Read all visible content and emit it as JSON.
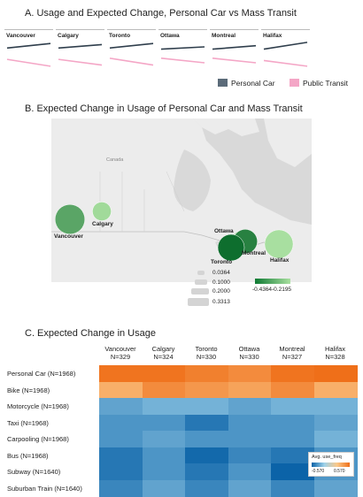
{
  "section_a": {
    "title": "A. Usage and Expected Change, Personal Car vs Mass Transit",
    "legend": [
      {
        "label": "Personal Car",
        "color": "#5b6b79"
      },
      {
        "label": "Public Transit",
        "color": "#f4a6c6"
      }
    ]
  },
  "section_b": {
    "title": "B. Expected Change in Usage of Personal Car and Mass Transit",
    "map_labels": [
      "Canada",
      "Calgary",
      "Vancouver",
      "Ottawa",
      "Montreal",
      "Toronto",
      "Halifax"
    ],
    "size_legend": [
      "0.0364",
      "0.1000",
      "0.2000",
      "0.3313"
    ],
    "color_legend": {
      "min": "-0.4364",
      "max": "-0.2195"
    }
  },
  "section_c": {
    "title": "C. Expected Change in Usage",
    "color_legend": {
      "title": "Avg. use_freq",
      "min": "-0.570",
      "max": "0.570"
    }
  },
  "chart_data": [
    {
      "type": "line",
      "title": "A. Usage and Expected Change, Personal Car vs Mass Transit",
      "panels": [
        {
          "name": "Vancouver",
          "personal_car": [
            0.3,
            0.5
          ],
          "public_transit": [
            -0.2,
            -0.5
          ]
        },
        {
          "name": "Calgary",
          "personal_car": [
            0.3,
            0.45
          ],
          "public_transit": [
            -0.2,
            -0.45
          ]
        },
        {
          "name": "Toronto",
          "personal_car": [
            0.3,
            0.5
          ],
          "public_transit": [
            -0.15,
            -0.45
          ]
        },
        {
          "name": "Ottawa",
          "personal_car": [
            0.25,
            0.35
          ],
          "public_transit": [
            -0.15,
            -0.35
          ]
        },
        {
          "name": "Montreal",
          "personal_car": [
            0.25,
            0.4
          ],
          "public_transit": [
            -0.15,
            -0.35
          ]
        },
        {
          "name": "Halifax",
          "personal_car": [
            0.25,
            0.55
          ],
          "public_transit": [
            -0.25,
            -0.5
          ]
        }
      ],
      "series": [
        {
          "name": "Personal Car",
          "color": "#2f3e4c"
        },
        {
          "name": "Public Transit",
          "color": "#f4a6c6"
        }
      ],
      "ylim": [
        -0.7,
        0.7
      ]
    },
    {
      "type": "scatter",
      "title": "B. Expected Change in Usage of Personal Car and Mass Transit",
      "points": [
        {
          "city": "Vancouver",
          "size": 0.3313,
          "color_value": -0.33
        },
        {
          "city": "Calgary",
          "size": 0.1,
          "color_value": -0.23
        },
        {
          "city": "Ottawa",
          "size": 0.0364,
          "color_value": -0.24
        },
        {
          "city": "Montreal",
          "size": 0.2,
          "color_value": -0.4
        },
        {
          "city": "Toronto",
          "size": 0.25,
          "color_value": -0.4364
        },
        {
          "city": "Halifax",
          "size": 0.3,
          "color_value": -0.2195
        }
      ],
      "size_legend_values": [
        0.0364,
        0.1,
        0.2,
        0.3313
      ],
      "color_range": [
        -0.4364,
        -0.2195
      ]
    },
    {
      "type": "heatmap",
      "title": "C. Expected Change in Usage",
      "columns": [
        "Vancouver\nN=329",
        "Calgary\nN=324",
        "Toronto\nN=330",
        "Ottawa\nN=330",
        "Montreal\nN=327",
        "Halifax\nN=328"
      ],
      "rows": [
        "Personal Car (N=1968)",
        "Bike (N=1968)",
        "Motorcycle (N=1968)",
        "Taxi (N=1968)",
        "Carpooling (N=1968)",
        "Bus (N=1968)",
        "Subway (N=1640)",
        "Suburban Train (N=1640)"
      ],
      "values": [
        [
          0.55,
          0.55,
          0.5,
          0.45,
          0.55,
          0.57
        ],
        [
          0.3,
          0.45,
          0.4,
          0.35,
          0.45,
          0.3
        ],
        [
          -0.35,
          -0.3,
          -0.3,
          -0.35,
          -0.3,
          -0.3
        ],
        [
          -0.4,
          -0.4,
          -0.5,
          -0.4,
          -0.4,
          -0.35
        ],
        [
          -0.4,
          -0.35,
          -0.4,
          -0.4,
          -0.4,
          -0.3
        ],
        [
          -0.5,
          -0.4,
          -0.55,
          -0.45,
          -0.5,
          -0.4
        ],
        [
          -0.5,
          -0.4,
          -0.5,
          -0.4,
          -0.57,
          -0.4
        ],
        [
          -0.45,
          -0.35,
          -0.45,
          -0.35,
          -0.45,
          -0.35
        ]
      ],
      "color_range": [
        -0.57,
        0.57
      ]
    }
  ]
}
